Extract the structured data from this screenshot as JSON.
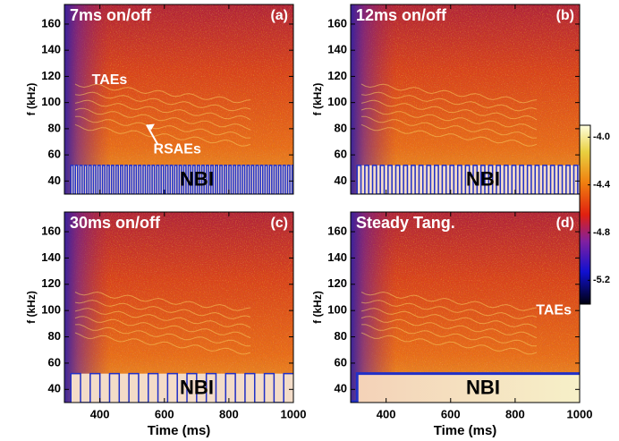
{
  "chart_data": [
    {
      "type": "heatmap",
      "title": "7ms on/off",
      "panel_label": "(a)",
      "ylabel": "f (kHz)",
      "xlim": [
        290,
        1000
      ],
      "ylim": [
        30,
        175
      ],
      "yticks": [
        40,
        60,
        80,
        100,
        120,
        140,
        160
      ],
      "xticks": [
        400,
        600,
        800,
        1000
      ],
      "annotations": [
        {
          "text": "TAEs",
          "x": 430,
          "y": 117
        },
        {
          "text": "RSAEs",
          "x": 640,
          "y": 64
        }
      ],
      "nbi": {
        "label": "NBI",
        "start": 310,
        "period": 7,
        "low": 30,
        "high": 52
      }
    },
    {
      "type": "heatmap",
      "title": "12ms on/off",
      "panel_label": "(b)",
      "ylabel": "f (kHz)",
      "xlim": [
        290,
        1000
      ],
      "ylim": [
        30,
        175
      ],
      "yticks": [
        40,
        60,
        80,
        100,
        120,
        140,
        160
      ],
      "xticks": [
        400,
        600,
        800,
        1000
      ],
      "nbi": {
        "label": "NBI",
        "start": 310,
        "period": 12,
        "low": 30,
        "high": 52
      }
    },
    {
      "type": "heatmap",
      "title": "30ms on/off",
      "panel_label": "(c)",
      "ylabel": "f (kHz)",
      "xlabel": "Time (ms)",
      "xlim": [
        290,
        1000
      ],
      "ylim": [
        30,
        175
      ],
      "yticks": [
        40,
        60,
        80,
        100,
        120,
        140,
        160
      ],
      "xticks": [
        400,
        600,
        800,
        1000
      ],
      "nbi": {
        "label": "NBI",
        "start": 310,
        "period": 30,
        "low": 30,
        "high": 52
      }
    },
    {
      "type": "heatmap",
      "title": "Steady Tang.",
      "panel_label": "(d)",
      "ylabel": "f (kHz)",
      "xlabel": "Time (ms)",
      "xlim": [
        290,
        1000
      ],
      "ylim": [
        30,
        175
      ],
      "yticks": [
        40,
        60,
        80,
        100,
        120,
        140,
        160
      ],
      "xticks": [
        400,
        600,
        800,
        1000
      ],
      "annotations": [
        {
          "text": "TAEs",
          "x": 920,
          "y": 100
        }
      ],
      "nbi": {
        "label": "NBI",
        "start": 310,
        "low": 30,
        "high": 52
      }
    }
  ],
  "colorbar": {
    "lim": [
      -5.4,
      -3.9
    ],
    "ticks": [
      {
        "value": -4,
        "label": "-4.0"
      },
      {
        "value": -4.4,
        "label": "-4.4"
      },
      {
        "value": -4.8,
        "label": "-4.8"
      },
      {
        "value": -5.2,
        "label": "-5.2"
      }
    ]
  }
}
